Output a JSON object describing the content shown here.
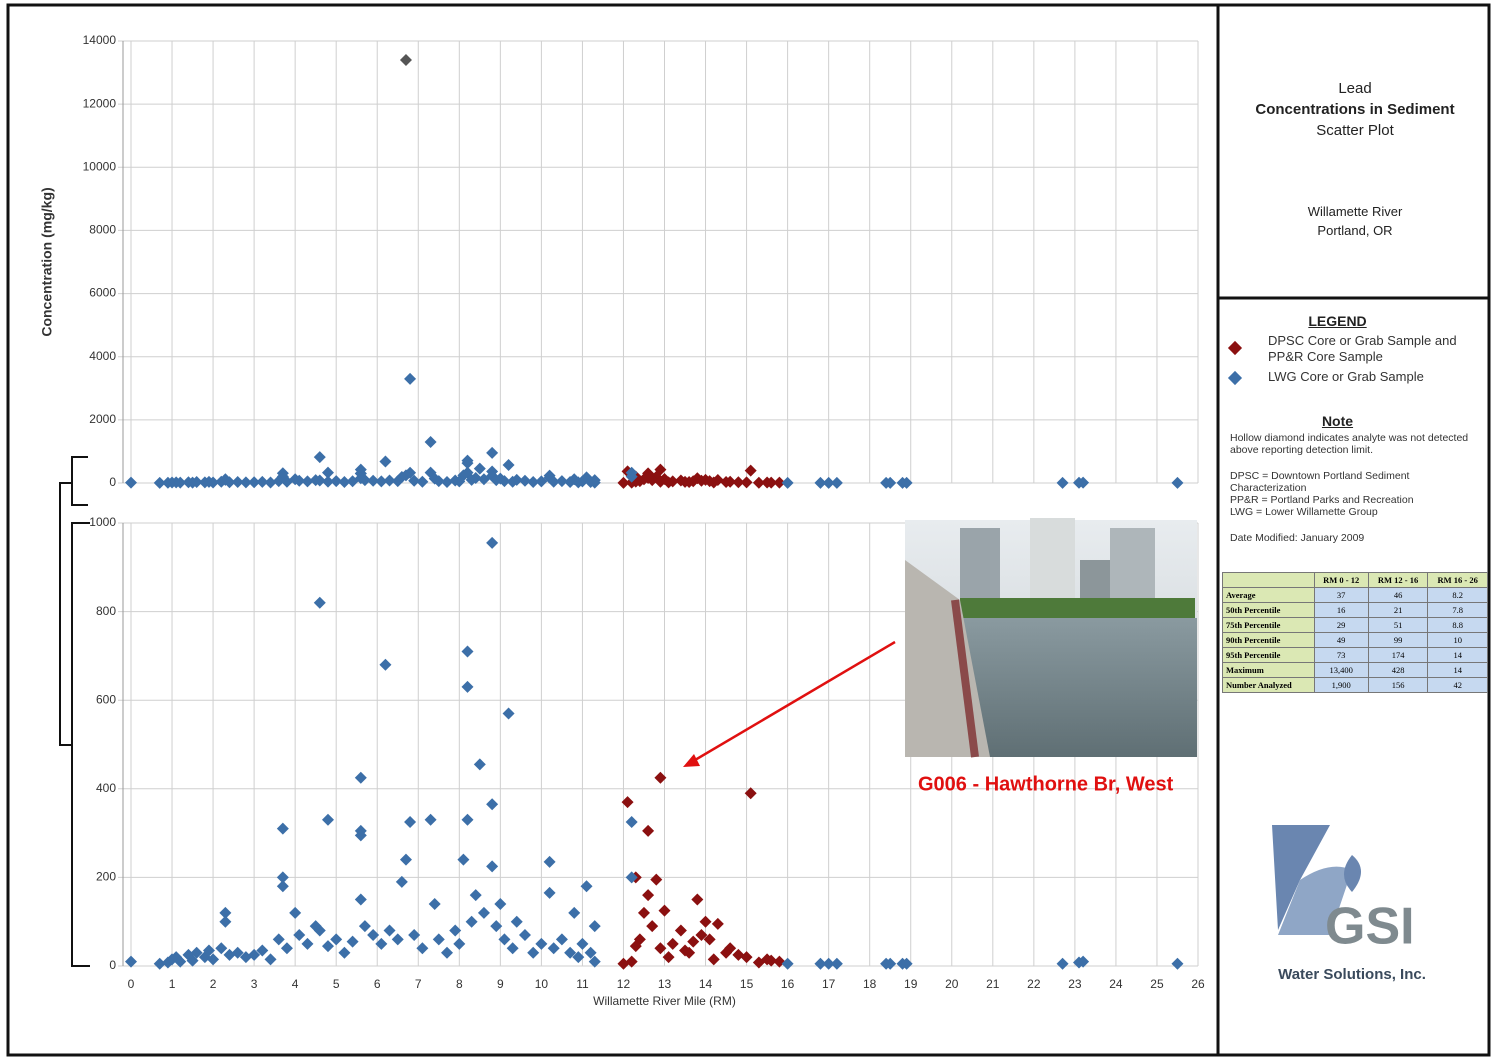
{
  "chart_data": {
    "type": "scatter",
    "x_label": "Willamette River Mile (RM)",
    "y_label": "Concentration (mg/kg)",
    "xlim": [
      0,
      26
    ],
    "xticks": [
      0,
      1,
      2,
      3,
      4,
      5,
      6,
      7,
      8,
      9,
      10,
      11,
      12,
      13,
      14,
      15,
      16,
      17,
      18,
      19,
      20,
      21,
      22,
      23,
      24,
      25,
      26
    ],
    "panels": [
      {
        "ylim": [
          0,
          14000
        ],
        "yticks": [
          0,
          2000,
          4000,
          6000,
          8000,
          10000,
          12000,
          14000
        ]
      },
      {
        "ylim": [
          0,
          1000
        ],
        "yticks": [
          0,
          200,
          400,
          600,
          800,
          1000
        ]
      }
    ],
    "grid": true,
    "series": [
      {
        "name": "DPSC Core or Grab Sample and PP&R Core Sample",
        "color": "#8b1010",
        "x": [
          12.1,
          12.9,
          15.1,
          12.6,
          12.3,
          12.8,
          13.0,
          13.8,
          12.5,
          14.0,
          14.3,
          12.7,
          13.4,
          13.9,
          12.4,
          13.2,
          14.6,
          15.0,
          15.5,
          15.8,
          12.2,
          13.6,
          14.8,
          12.9,
          13.1,
          14.2,
          12.0,
          15.3,
          12.6,
          14.1,
          13.5,
          12.3,
          14.5,
          15.6,
          13.7
        ],
        "values": [
          370,
          425,
          390,
          305,
          200,
          195,
          125,
          150,
          120,
          100,
          95,
          90,
          80,
          70,
          60,
          50,
          40,
          20,
          15,
          10,
          10,
          30,
          25,
          40,
          20,
          15,
          5,
          8,
          160,
          60,
          35,
          45,
          30,
          12,
          55
        ]
      },
      {
        "name": "LWG Core or Grab Sample",
        "color": "#3c6fa8",
        "x": [
          6.7,
          6.8,
          7.3,
          4.6,
          8.8,
          8.2,
          8.2,
          6.2,
          9.2,
          5.6,
          8.5,
          3.7,
          4.8,
          5.6,
          5.6,
          6.8,
          7.3,
          8.2,
          8.8,
          8.1,
          6.7,
          10.2,
          8.8,
          3.7,
          3.7,
          6.6,
          12.2,
          12.2,
          11.1,
          10.2,
          5.6,
          2.3,
          2.3,
          4.0,
          4.5,
          7.4,
          8.4,
          9.0,
          9.4,
          10.8,
          0,
          0.7,
          0.9,
          1.0,
          1.1,
          1.2,
          1.4,
          1.5,
          1.6,
          1.8,
          1.9,
          2.0,
          2.2,
          2.4,
          2.6,
          2.8,
          3.0,
          3.2,
          3.4,
          3.6,
          3.8,
          4.1,
          4.3,
          4.6,
          4.8,
          5.0,
          5.2,
          5.4,
          5.7,
          5.9,
          6.1,
          6.3,
          6.5,
          6.9,
          7.1,
          7.5,
          7.7,
          7.9,
          8.0,
          8.3,
          8.6,
          8.9,
          9.1,
          9.3,
          9.6,
          9.8,
          10.0,
          10.3,
          10.5,
          10.7,
          10.9,
          11.0,
          11.2,
          11.3,
          11.3,
          16.0,
          16.8,
          17.0,
          17.2,
          18.4,
          18.5,
          18.8,
          18.9,
          22.7,
          23.1,
          23.2,
          25.5
        ],
        "values": [
          13400,
          3300,
          1300,
          820,
          955,
          710,
          630,
          680,
          570,
          425,
          455,
          310,
          330,
          305,
          295,
          325,
          330,
          330,
          365,
          240,
          240,
          235,
          225,
          200,
          180,
          190,
          325,
          200,
          180,
          165,
          150,
          120,
          100,
          120,
          90,
          140,
          160,
          140,
          100,
          120,
          10,
          5,
          8,
          15,
          20,
          10,
          25,
          12,
          30,
          20,
          35,
          15,
          40,
          25,
          30,
          20,
          25,
          35,
          15,
          60,
          40,
          70,
          50,
          80,
          45,
          60,
          30,
          55,
          90,
          70,
          50,
          80,
          60,
          70,
          40,
          60,
          30,
          80,
          50,
          100,
          120,
          90,
          60,
          40,
          70,
          30,
          50,
          40,
          60,
          30,
          20,
          50,
          30,
          10,
          90,
          5,
          5,
          5,
          5,
          5,
          5,
          5,
          5,
          5,
          8,
          10,
          5
        ]
      }
    ]
  },
  "annotation": "G006 - Hawthorne Br, West",
  "side": {
    "title_line1": "Lead",
    "title_line2": "Concentrations in Sediment",
    "title_line3": "Scatter Plot",
    "location_line1": "Willamette River",
    "location_line2": "Portland, OR",
    "legend_heading": "LEGEND",
    "note_heading": "Note",
    "notes": [
      "Hollow diamond indicates analyte was not detected above reporting detection limit.",
      "DPSC = Downtown Portland Sediment Characterization",
      "PP&R = Portland Parks and Recreation",
      "LWG = Lower Willamette Group"
    ],
    "date_modified": "Date Modified: January 2009"
  },
  "table": {
    "columns": [
      "RM 0 - 12",
      "RM 12 - 16",
      "RM 16 - 26"
    ],
    "rows": [
      {
        "label": "Average",
        "values": [
          "37",
          "46",
          "8.2"
        ]
      },
      {
        "label": "50th Percentile",
        "values": [
          "16",
          "21",
          "7.8"
        ]
      },
      {
        "label": "75th Percentile",
        "values": [
          "29",
          "51",
          "8.8"
        ]
      },
      {
        "label": "90th Percentile",
        "values": [
          "49",
          "99",
          "10"
        ]
      },
      {
        "label": "95th Percentile",
        "values": [
          "73",
          "174",
          "14"
        ]
      },
      {
        "label": "Maximum",
        "values": [
          "13,400",
          "428",
          "14"
        ]
      },
      {
        "label": "Number Analyzed",
        "values": [
          "1,900",
          "156",
          "42"
        ]
      }
    ]
  },
  "logo": {
    "name": "GSI",
    "subtitle": "Water Solutions, Inc."
  }
}
